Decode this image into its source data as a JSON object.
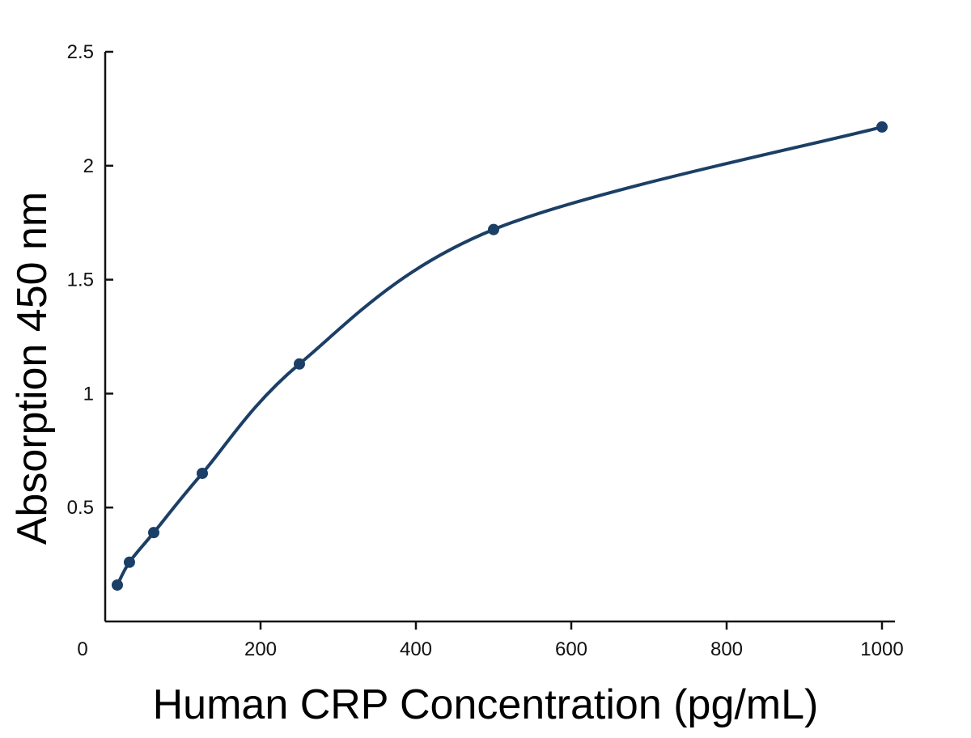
{
  "chart_data": {
    "type": "scatter",
    "title": "",
    "xlabel": "Human CRP Concentration (pg/mL)",
    "ylabel": "Absorption 450 nm",
    "xlim": [
      0,
      1000
    ],
    "ylim": [
      0,
      2.5
    ],
    "x_ticks": [
      0,
      200,
      400,
      600,
      800,
      1000
    ],
    "y_ticks": [
      0.5,
      1,
      1.5,
      2,
      2.5
    ],
    "x_tick_labels": [
      "0",
      "200",
      "400",
      "600",
      "800",
      "1000"
    ],
    "y_tick_labels": [
      "0.5",
      "1",
      "1.5",
      "2",
      "2.5"
    ],
    "grid": false,
    "legend": "none",
    "series": [
      {
        "x": [
          15.6,
          31.2,
          62.5,
          125,
          250,
          500,
          1000
        ],
        "y": [
          0.16,
          0.26,
          0.39,
          0.65,
          1.13,
          1.72,
          2.17
        ]
      }
    ],
    "fit_curve": "smooth",
    "color": "#1b3f66"
  }
}
